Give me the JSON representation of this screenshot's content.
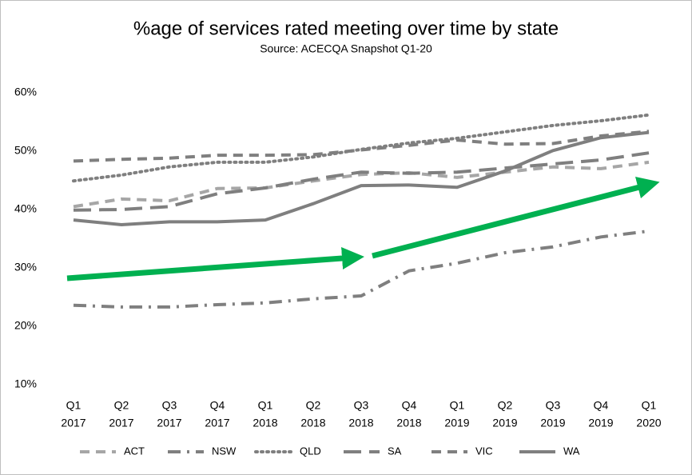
{
  "chart_data": {
    "type": "line",
    "title": "%age of services rated meeting over time by state",
    "subtitle": "Source: ACECQA Snapshot Q1-20",
    "categories": [
      [
        "Q1",
        "2017"
      ],
      [
        "Q2",
        "2017"
      ],
      [
        "Q3",
        "2017"
      ],
      [
        "Q4",
        "2017"
      ],
      [
        "Q1",
        "2018"
      ],
      [
        "Q2",
        "2018"
      ],
      [
        "Q3",
        "2018"
      ],
      [
        "Q4",
        "2018"
      ],
      [
        "Q1",
        "2019"
      ],
      [
        "Q2",
        "2019"
      ],
      [
        "Q3",
        "2019"
      ],
      [
        "Q4",
        "2019"
      ],
      [
        "Q1",
        "2020"
      ]
    ],
    "series": [
      {
        "name": "ACT",
        "color": "#a6a6a6",
        "dash": "dash",
        "values": [
          40.5,
          41.8,
          41.5,
          43.6,
          43.7,
          44.9,
          46.0,
          46.3,
          45.5,
          46.4,
          47.3,
          47.0,
          48.1
        ]
      },
      {
        "name": "NSW",
        "color": "#7f7f7f",
        "dash": "dashdot",
        "values": [
          23.6,
          23.3,
          23.3,
          23.7,
          24.0,
          24.7,
          25.2,
          29.5,
          30.8,
          32.6,
          33.6,
          35.3,
          36.3
        ]
      },
      {
        "name": "QLD",
        "color": "#7f7f7f",
        "dash": "dot",
        "values": [
          44.9,
          45.9,
          47.3,
          48.1,
          48.1,
          49.0,
          50.3,
          51.4,
          52.2,
          53.3,
          54.4,
          55.2,
          56.2
        ]
      },
      {
        "name": "SA",
        "color": "#7f7f7f",
        "dash": "longdash",
        "values": [
          39.9,
          40.0,
          40.5,
          42.7,
          43.7,
          45.2,
          46.4,
          46.2,
          46.4,
          47.1,
          47.8,
          48.5,
          49.7
        ]
      },
      {
        "name": "VIC",
        "color": "#7f7f7f",
        "dash": "dash",
        "values": [
          48.3,
          48.6,
          48.8,
          49.3,
          49.3,
          49.4,
          50.2,
          51.0,
          51.9,
          51.2,
          51.3,
          52.6,
          53.4
        ]
      },
      {
        "name": "WA",
        "color": "#7f7f7f",
        "dash": "solid",
        "values": [
          38.2,
          37.4,
          37.9,
          37.9,
          38.2,
          41.0,
          44.1,
          44.2,
          43.8,
          46.6,
          50.1,
          52.3,
          53.2
        ]
      }
    ],
    "ylim": [
      10,
      60
    ],
    "yticks": [
      {
        "value": 10,
        "label": "10%"
      },
      {
        "value": 20,
        "label": "20%"
      },
      {
        "value": 30,
        "label": "30%"
      },
      {
        "value": 40,
        "label": "40%"
      },
      {
        "value": 50,
        "label": "50%"
      },
      {
        "value": 60,
        "label": "60%"
      }
    ],
    "grid": false,
    "legend": "bottom"
  }
}
